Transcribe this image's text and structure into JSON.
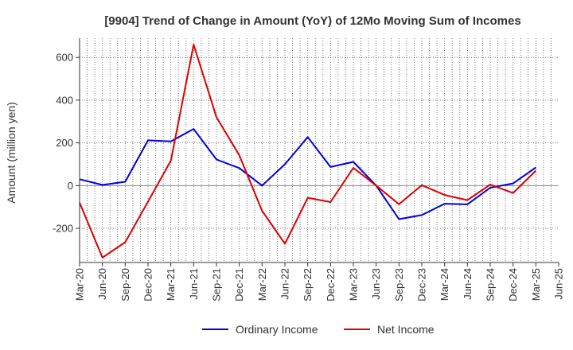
{
  "chart_data": {
    "type": "line",
    "title": "[9904]  Trend of Change in Amount (YoY) of 12Mo Moving Sum of Incomes",
    "xlabel": "",
    "ylabel": "Amount (million yen)",
    "ylim": [
      -360,
      690
    ],
    "yticks": [
      600,
      400,
      200,
      0,
      -200
    ],
    "ytick_labels": [
      "600",
      "400",
      "200",
      "0",
      "-200"
    ],
    "categories": [
      "Mar-20",
      "Jun-20",
      "Sep-20",
      "Dec-20",
      "Mar-21",
      "Jun-21",
      "Sep-21",
      "Dec-21",
      "Mar-22",
      "Jun-22",
      "Sep-22",
      "Dec-22",
      "Mar-23",
      "Jun-23",
      "Sep-23",
      "Dec-23",
      "Mar-24",
      "Jun-24",
      "Sep-24",
      "Dec-24",
      "Mar-25",
      "Jun-25"
    ],
    "grid": true,
    "legend_position": "bottom",
    "series": [
      {
        "name": "Ordinary Income",
        "color": "#0000dd",
        "values": [
          30,
          3,
          18,
          212,
          207,
          265,
          122,
          82,
          0,
          100,
          227,
          87,
          111,
          0,
          -157,
          -138,
          -85,
          -88,
          -10,
          10,
          85,
          null
        ]
      },
      {
        "name": "Net Income",
        "color": "#dd0000",
        "values": [
          -80,
          -337,
          -265,
          -75,
          117,
          660,
          320,
          142,
          -118,
          -272,
          -57,
          -77,
          83,
          0,
          -87,
          2,
          -44,
          -68,
          5,
          -35,
          70,
          null
        ]
      }
    ]
  }
}
